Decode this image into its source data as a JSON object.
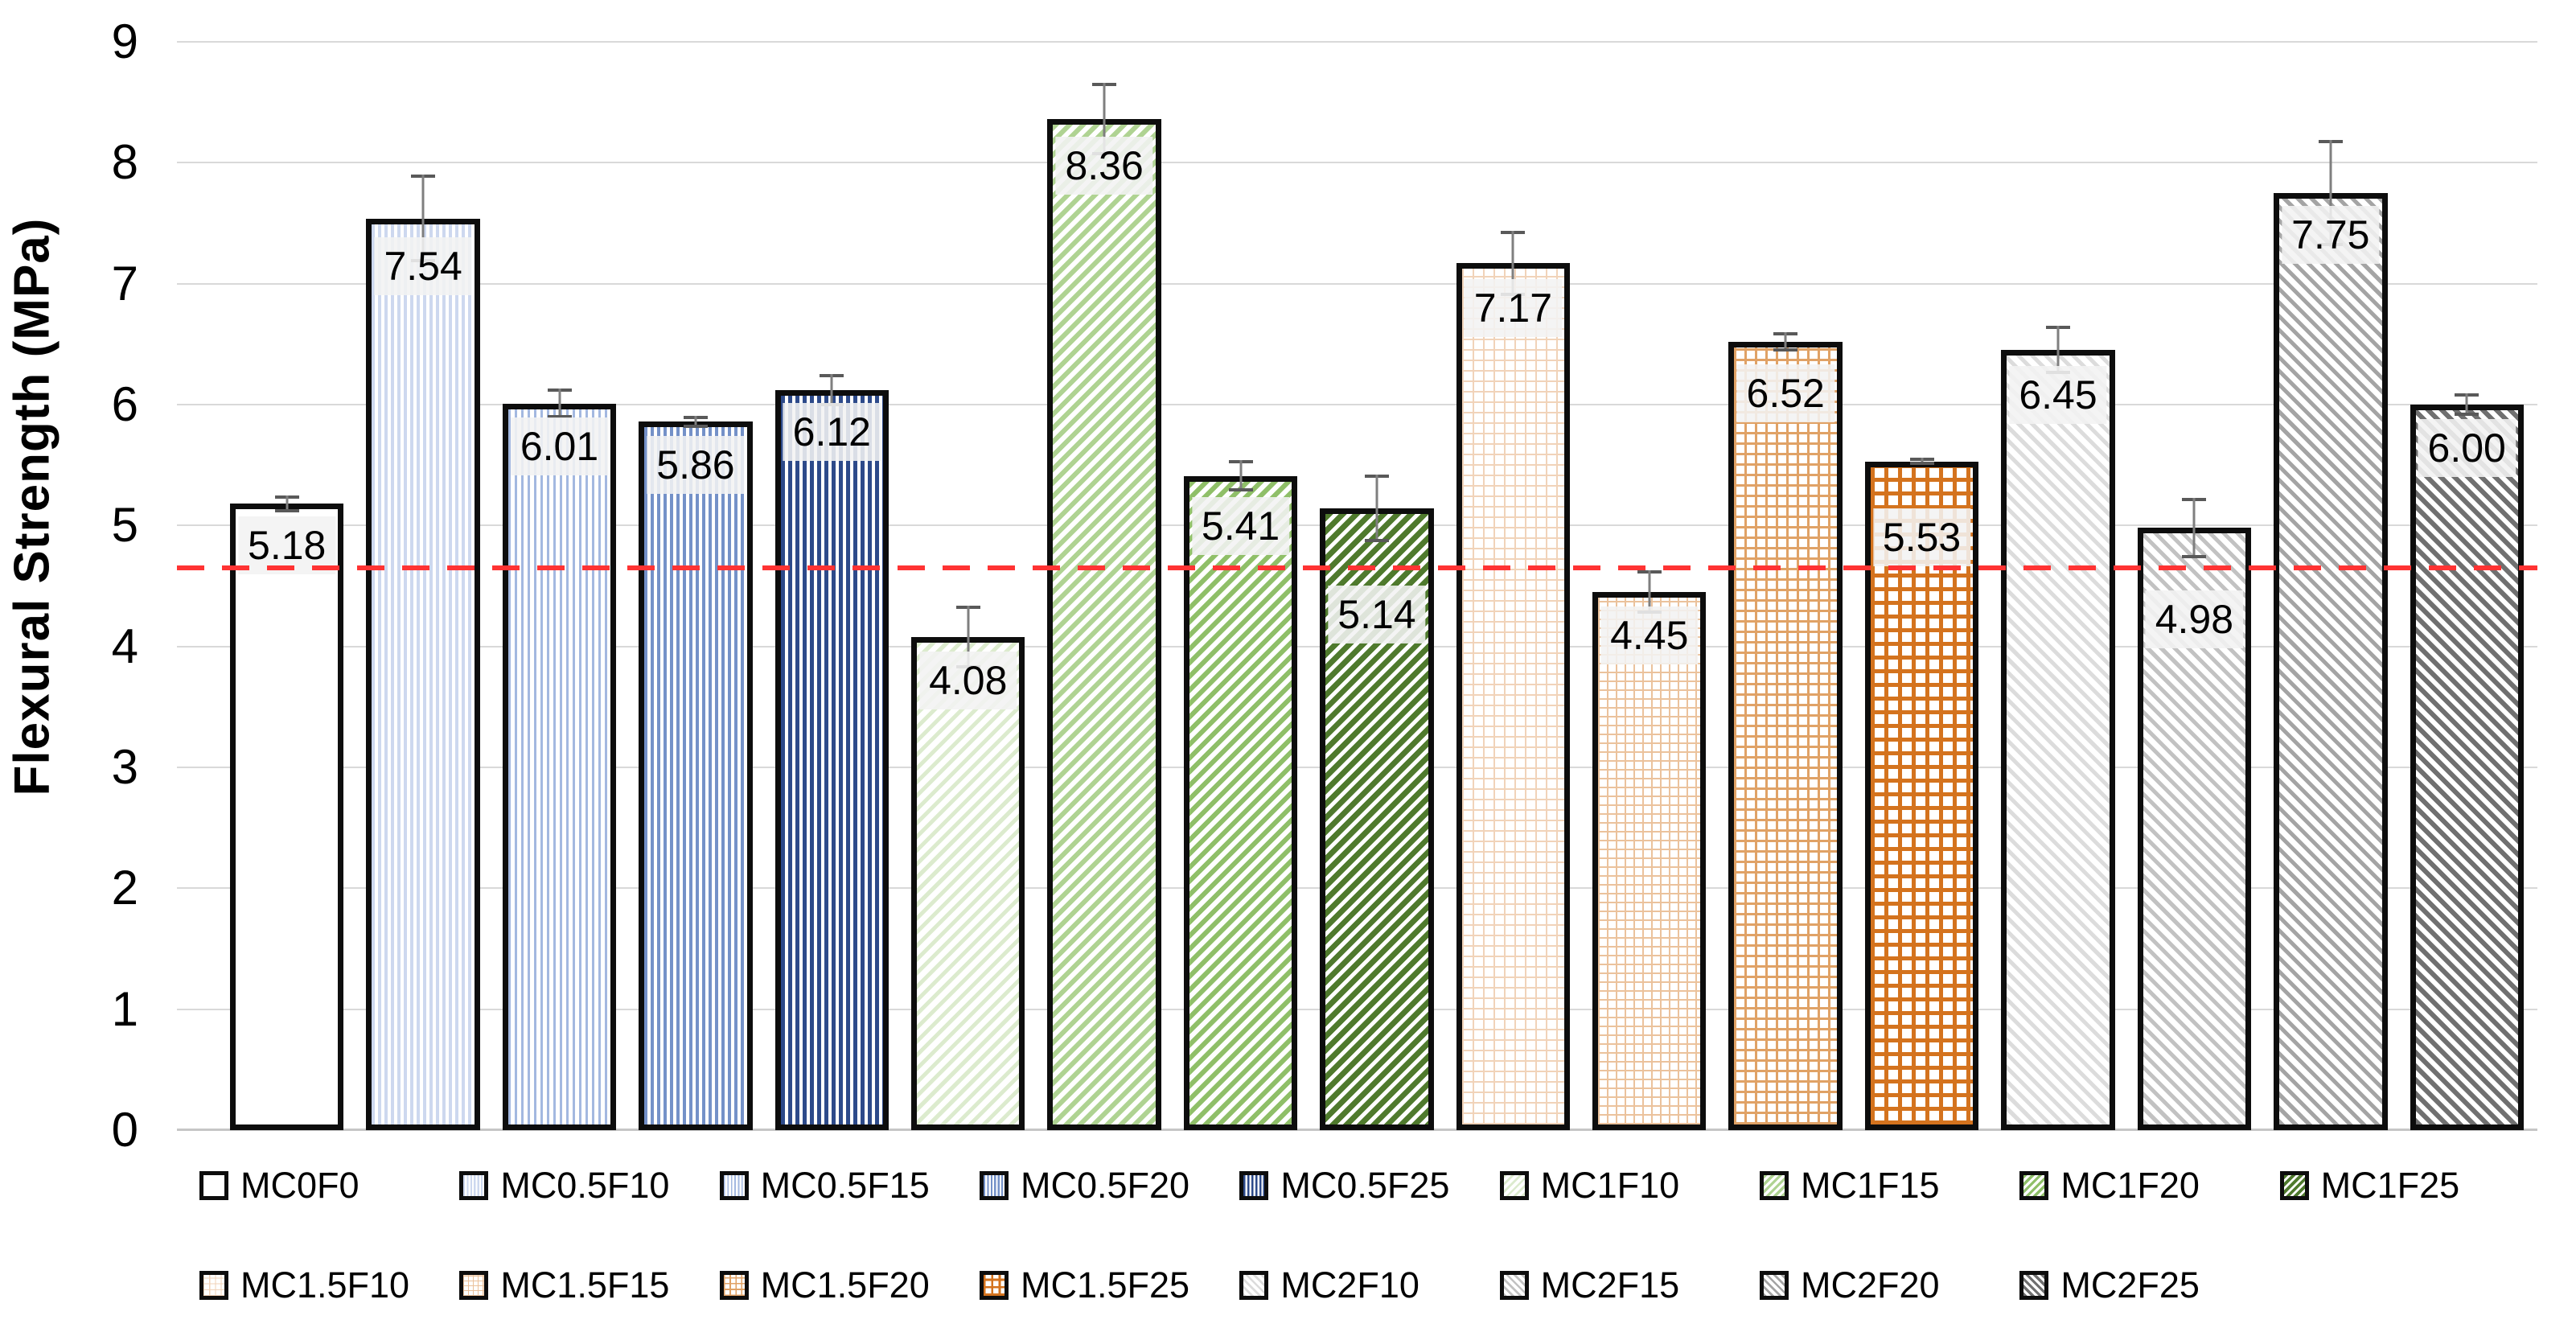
{
  "chart_data": {
    "type": "bar",
    "title": "",
    "xlabel": "",
    "ylabel": "Flexural Strength (MPa)",
    "ylim": [
      0,
      9
    ],
    "yticks": [
      0,
      1,
      2,
      3,
      4,
      5,
      6,
      7,
      8,
      9
    ],
    "grid": true,
    "legend_position": "bottom",
    "gridline_color": "#d9d9d9",
    "bar_border_color": "#0d0d0d",
    "error_bar_color": "#7f7f7f",
    "label_box_color": "#f2f2f2",
    "reference_line": {
      "value": 4.65,
      "color": "#ff3333",
      "style": "dashed"
    },
    "categories": [
      "MC0F0",
      "MC0.5F10",
      "MC0.5F15",
      "MC0.5F20",
      "MC0.5F25",
      "MC1F10",
      "MC1F15",
      "MC1F20",
      "MC1F25",
      "MC1.5F10",
      "MC1.5F15",
      "MC1.5F20",
      "MC1.5F25",
      "MC2F10",
      "MC2F15",
      "MC2F20",
      "MC2F25"
    ],
    "values": [
      5.18,
      7.54,
      6.01,
      5.86,
      6.12,
      4.08,
      8.36,
      5.41,
      5.14,
      7.17,
      4.45,
      6.52,
      5.53,
      6.45,
      4.98,
      7.75,
      6.0
    ],
    "bars": [
      {
        "label": "MC0F0",
        "value": 5.18,
        "value_label": "5.18",
        "error": 0.07,
        "pattern": "plain",
        "color": "#FFFFFF",
        "line": 0,
        "gap": 0
      },
      {
        "label": "MC0.5F10",
        "value": 7.54,
        "value_label": "7.54",
        "error": 0.36,
        "pattern": "vlines",
        "color": "#CDD8EF",
        "line": 4,
        "gap": 4
      },
      {
        "label": "MC0.5F15",
        "value": 6.01,
        "value_label": "6.01",
        "error": 0.12,
        "pattern": "vlines",
        "color": "#A3B8E0",
        "line": 3,
        "gap": 5
      },
      {
        "label": "MC0.5F20",
        "value": 5.86,
        "value_label": "5.86",
        "error": 0.05,
        "pattern": "vlines",
        "color": "#7491C8",
        "line": 4,
        "gap": 4
      },
      {
        "label": "MC0.5F25",
        "value": 6.12,
        "value_label": "6.12",
        "error": 0.13,
        "pattern": "vlines",
        "color": "#2D4A8A",
        "line": 5,
        "gap": 4
      },
      {
        "label": "MC1F10",
        "value": 4.08,
        "value_label": "4.08",
        "error": 0.26,
        "pattern": "diag-up",
        "color": "#DCEBCE",
        "line": 5,
        "gap": 7
      },
      {
        "label": "MC1F15",
        "value": 8.36,
        "value_label": "8.36",
        "error": 0.3,
        "pattern": "diag-up",
        "color": "#AFD392",
        "line": 6,
        "gap": 6
      },
      {
        "label": "MC1F20",
        "value": 5.41,
        "value_label": "5.41",
        "error": 0.13,
        "pattern": "diag-up",
        "color": "#8FBF68",
        "line": 6,
        "gap": 6
      },
      {
        "label": "MC1F25",
        "value": 5.14,
        "value_label": "5.14",
        "error": 0.28,
        "pattern": "diag-up",
        "color": "#4F7A2D",
        "line": 7,
        "gap": 5
      },
      {
        "label": "MC1.5F10",
        "value": 7.17,
        "value_label": "7.17",
        "error": 0.27,
        "pattern": "grid",
        "color": "#F1D3B9",
        "line": 2,
        "gap": 11
      },
      {
        "label": "MC1.5F15",
        "value": 4.45,
        "value_label": "4.45",
        "error": 0.18,
        "pattern": "grid",
        "color": "#EBC29C",
        "line": 2,
        "gap": 9
      },
      {
        "label": "MC1.5F20",
        "value": 6.52,
        "value_label": "6.52",
        "error": 0.08,
        "pattern": "grid",
        "color": "#E0A266",
        "line": 3,
        "gap": 10
      },
      {
        "label": "MC1.5F25",
        "value": 5.53,
        "value_label": "5.53",
        "error": 0.03,
        "pattern": "grid",
        "color": "#D4731E",
        "line": 5,
        "gap": 12
      },
      {
        "label": "MC2F10",
        "value": 6.45,
        "value_label": "6.45",
        "error": 0.2,
        "pattern": "diag-down",
        "color": "#DCDCDC",
        "line": 5,
        "gap": 7
      },
      {
        "label": "MC2F15",
        "value": 4.98,
        "value_label": "4.98",
        "error": 0.25,
        "pattern": "diag-down",
        "color": "#C2C2C2",
        "line": 5,
        "gap": 7
      },
      {
        "label": "MC2F20",
        "value": 7.75,
        "value_label": "7.75",
        "error": 0.44,
        "pattern": "diag-down",
        "color": "#A4A4A4",
        "line": 5,
        "gap": 7
      },
      {
        "label": "MC2F25",
        "value": 6.0,
        "value_label": "6.00",
        "error": 0.09,
        "pattern": "diag-down",
        "color": "#707070",
        "line": 6,
        "gap": 6
      }
    ]
  }
}
